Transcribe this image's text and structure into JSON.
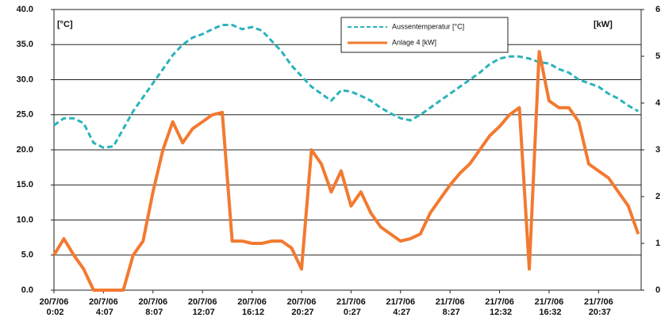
{
  "chart_data": {
    "type": "line",
    "y_label": "[°C]",
    "y2_label": "[kW]",
    "categories": [
      "20/7/06 0:02",
      null,
      null,
      null,
      null,
      "20/7/06 4:07",
      null,
      null,
      null,
      null,
      "20/7/06 8:07",
      null,
      null,
      null,
      null,
      "20/7/06 12:07",
      null,
      null,
      null,
      null,
      "20/7/06 16:12",
      null,
      null,
      null,
      null,
      "20/7/06 20:27",
      null,
      null,
      null,
      null,
      "21/7/06 0:27",
      null,
      null,
      null,
      null,
      "21/7/06 4:27",
      null,
      null,
      null,
      null,
      "21/7/06 8:27",
      null,
      null,
      null,
      null,
      "21/7/06 12:32",
      null,
      null,
      null,
      null,
      "21/7/06 16:32",
      null,
      null,
      null,
      null,
      "21/7/06 20:37",
      null,
      null,
      null,
      null
    ],
    "series": [
      {
        "name": "Aussentemperatur [°C]",
        "color": "#2ab3bb",
        "dashed": true,
        "axis": "y",
        "values": [
          23.5,
          24.5,
          24.5,
          23.8,
          21,
          20.3,
          20.5,
          23,
          25.5,
          27.5,
          29.5,
          31.5,
          33.5,
          35,
          36,
          36.5,
          37.2,
          37.8,
          37.8,
          37.2,
          37.5,
          37,
          35.5,
          34,
          32,
          30.5,
          29,
          28,
          27,
          28.5,
          28.3,
          27.7,
          27,
          26,
          25.2,
          24.5,
          24.2,
          25,
          26,
          27,
          28,
          29,
          30,
          31,
          32.2,
          33,
          33.3,
          33.3,
          33,
          32.5,
          32.3,
          31.5,
          31,
          30,
          29.5,
          29,
          28,
          27.3,
          26.3,
          25.5
        ]
      },
      {
        "name": "Anlage 4 [kW]",
        "color": "#f27a30",
        "dashed": false,
        "axis": "y2",
        "values": [
          0.75,
          1.1,
          0.75,
          0.45,
          0,
          0,
          0,
          0,
          0.75,
          1.05,
          2.1,
          3,
          3.6,
          3.15,
          3.45,
          3.6,
          3.75,
          3.8,
          1.05,
          1.05,
          1,
          1,
          1.05,
          1.05,
          0.9,
          0.45,
          3,
          2.7,
          2.1,
          2.55,
          1.8,
          2.1,
          1.65,
          1.35,
          1.2,
          1.05,
          1.1,
          1.2,
          1.65,
          1.95,
          2.25,
          2.5,
          2.7,
          3,
          3.3,
          3.5,
          3.75,
          3.9,
          0.45,
          5.1,
          4.05,
          3.9,
          3.9,
          3.6,
          2.7,
          2.55,
          2.4,
          2.1,
          1.8,
          1.2
        ]
      }
    ],
    "ylim": [
      0,
      40
    ],
    "yticks": [
      {
        "value": 0,
        "label": "0.0"
      },
      {
        "value": 5,
        "label": "5.0"
      },
      {
        "value": 10,
        "label": "10.0"
      },
      {
        "value": 15,
        "label": "15.0"
      },
      {
        "value": 20,
        "label": "20.0"
      },
      {
        "value": 25,
        "label": "25.0"
      },
      {
        "value": 30,
        "label": "30.0"
      },
      {
        "value": 35,
        "label": "35.0"
      },
      {
        "value": 40,
        "label": "40.0"
      }
    ],
    "y2lim": [
      0,
      6
    ],
    "y2ticks": [
      0,
      1,
      2,
      3,
      4,
      5,
      6
    ],
    "grid": true,
    "legend": "top"
  }
}
